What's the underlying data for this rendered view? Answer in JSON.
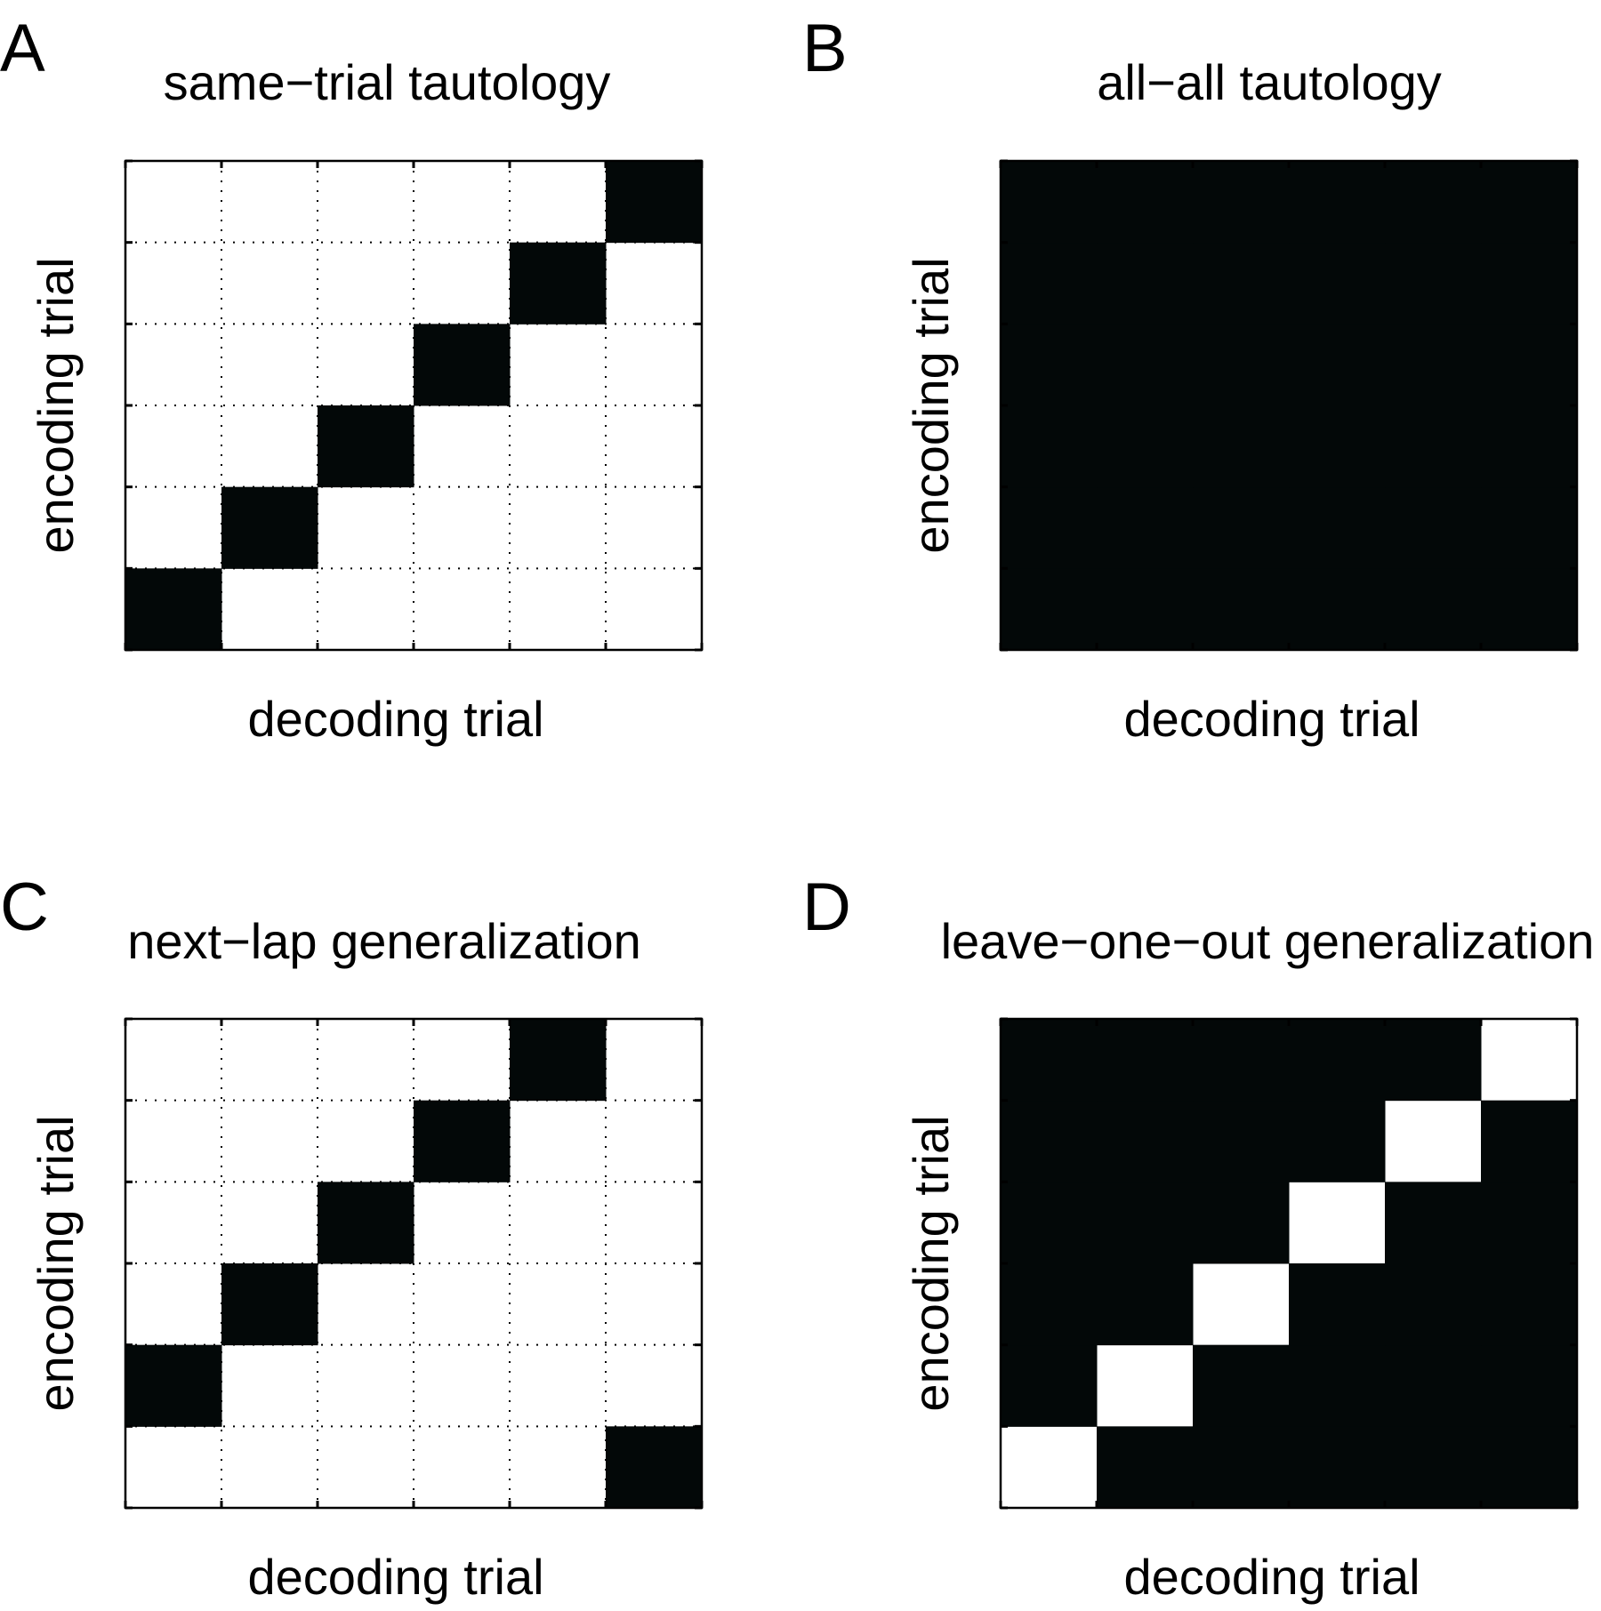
{
  "colors": {
    "filled": "#030808",
    "empty": "#ffffff",
    "axis": "#000000",
    "grid": "#000000"
  },
  "chart_data": [
    {
      "type": "heatmap",
      "panel": "A",
      "title": "same−trial tautology",
      "xlabel": "decoding trial",
      "ylabel": "encoding trial",
      "grid": true,
      "n": 6,
      "matrix": [
        [
          1,
          0,
          0,
          0,
          0,
          0
        ],
        [
          0,
          1,
          0,
          0,
          0,
          0
        ],
        [
          0,
          0,
          1,
          0,
          0,
          0
        ],
        [
          0,
          0,
          0,
          1,
          0,
          0
        ],
        [
          0,
          0,
          0,
          0,
          1,
          0
        ],
        [
          0,
          0,
          0,
          0,
          0,
          1
        ]
      ]
    },
    {
      "type": "heatmap",
      "panel": "B",
      "title": "all−all tautology",
      "xlabel": "decoding trial",
      "ylabel": "encoding trial",
      "grid": false,
      "n": 6,
      "matrix": [
        [
          1,
          1,
          1,
          1,
          1,
          1
        ],
        [
          1,
          1,
          1,
          1,
          1,
          1
        ],
        [
          1,
          1,
          1,
          1,
          1,
          1
        ],
        [
          1,
          1,
          1,
          1,
          1,
          1
        ],
        [
          1,
          1,
          1,
          1,
          1,
          1
        ],
        [
          1,
          1,
          1,
          1,
          1,
          1
        ]
      ]
    },
    {
      "type": "heatmap",
      "panel": "C",
      "title": "next−lap generalization",
      "xlabel": "decoding trial",
      "ylabel": "encoding trial",
      "grid": true,
      "n": 6,
      "matrix": [
        [
          0,
          0,
          0,
          0,
          0,
          1
        ],
        [
          1,
          0,
          0,
          0,
          0,
          0
        ],
        [
          0,
          1,
          0,
          0,
          0,
          0
        ],
        [
          0,
          0,
          1,
          0,
          0,
          0
        ],
        [
          0,
          0,
          0,
          1,
          0,
          0
        ],
        [
          0,
          0,
          0,
          0,
          1,
          0
        ]
      ]
    },
    {
      "type": "heatmap",
      "panel": "D",
      "title": "leave−one−out generalization",
      "xlabel": "decoding trial",
      "ylabel": "encoding trial",
      "grid": false,
      "n": 6,
      "matrix": [
        [
          0,
          1,
          1,
          1,
          1,
          1
        ],
        [
          1,
          0,
          1,
          1,
          1,
          1
        ],
        [
          1,
          1,
          0,
          1,
          1,
          1
        ],
        [
          1,
          1,
          1,
          0,
          1,
          1
        ],
        [
          1,
          1,
          1,
          1,
          0,
          1
        ],
        [
          1,
          1,
          1,
          1,
          1,
          0
        ]
      ]
    }
  ]
}
